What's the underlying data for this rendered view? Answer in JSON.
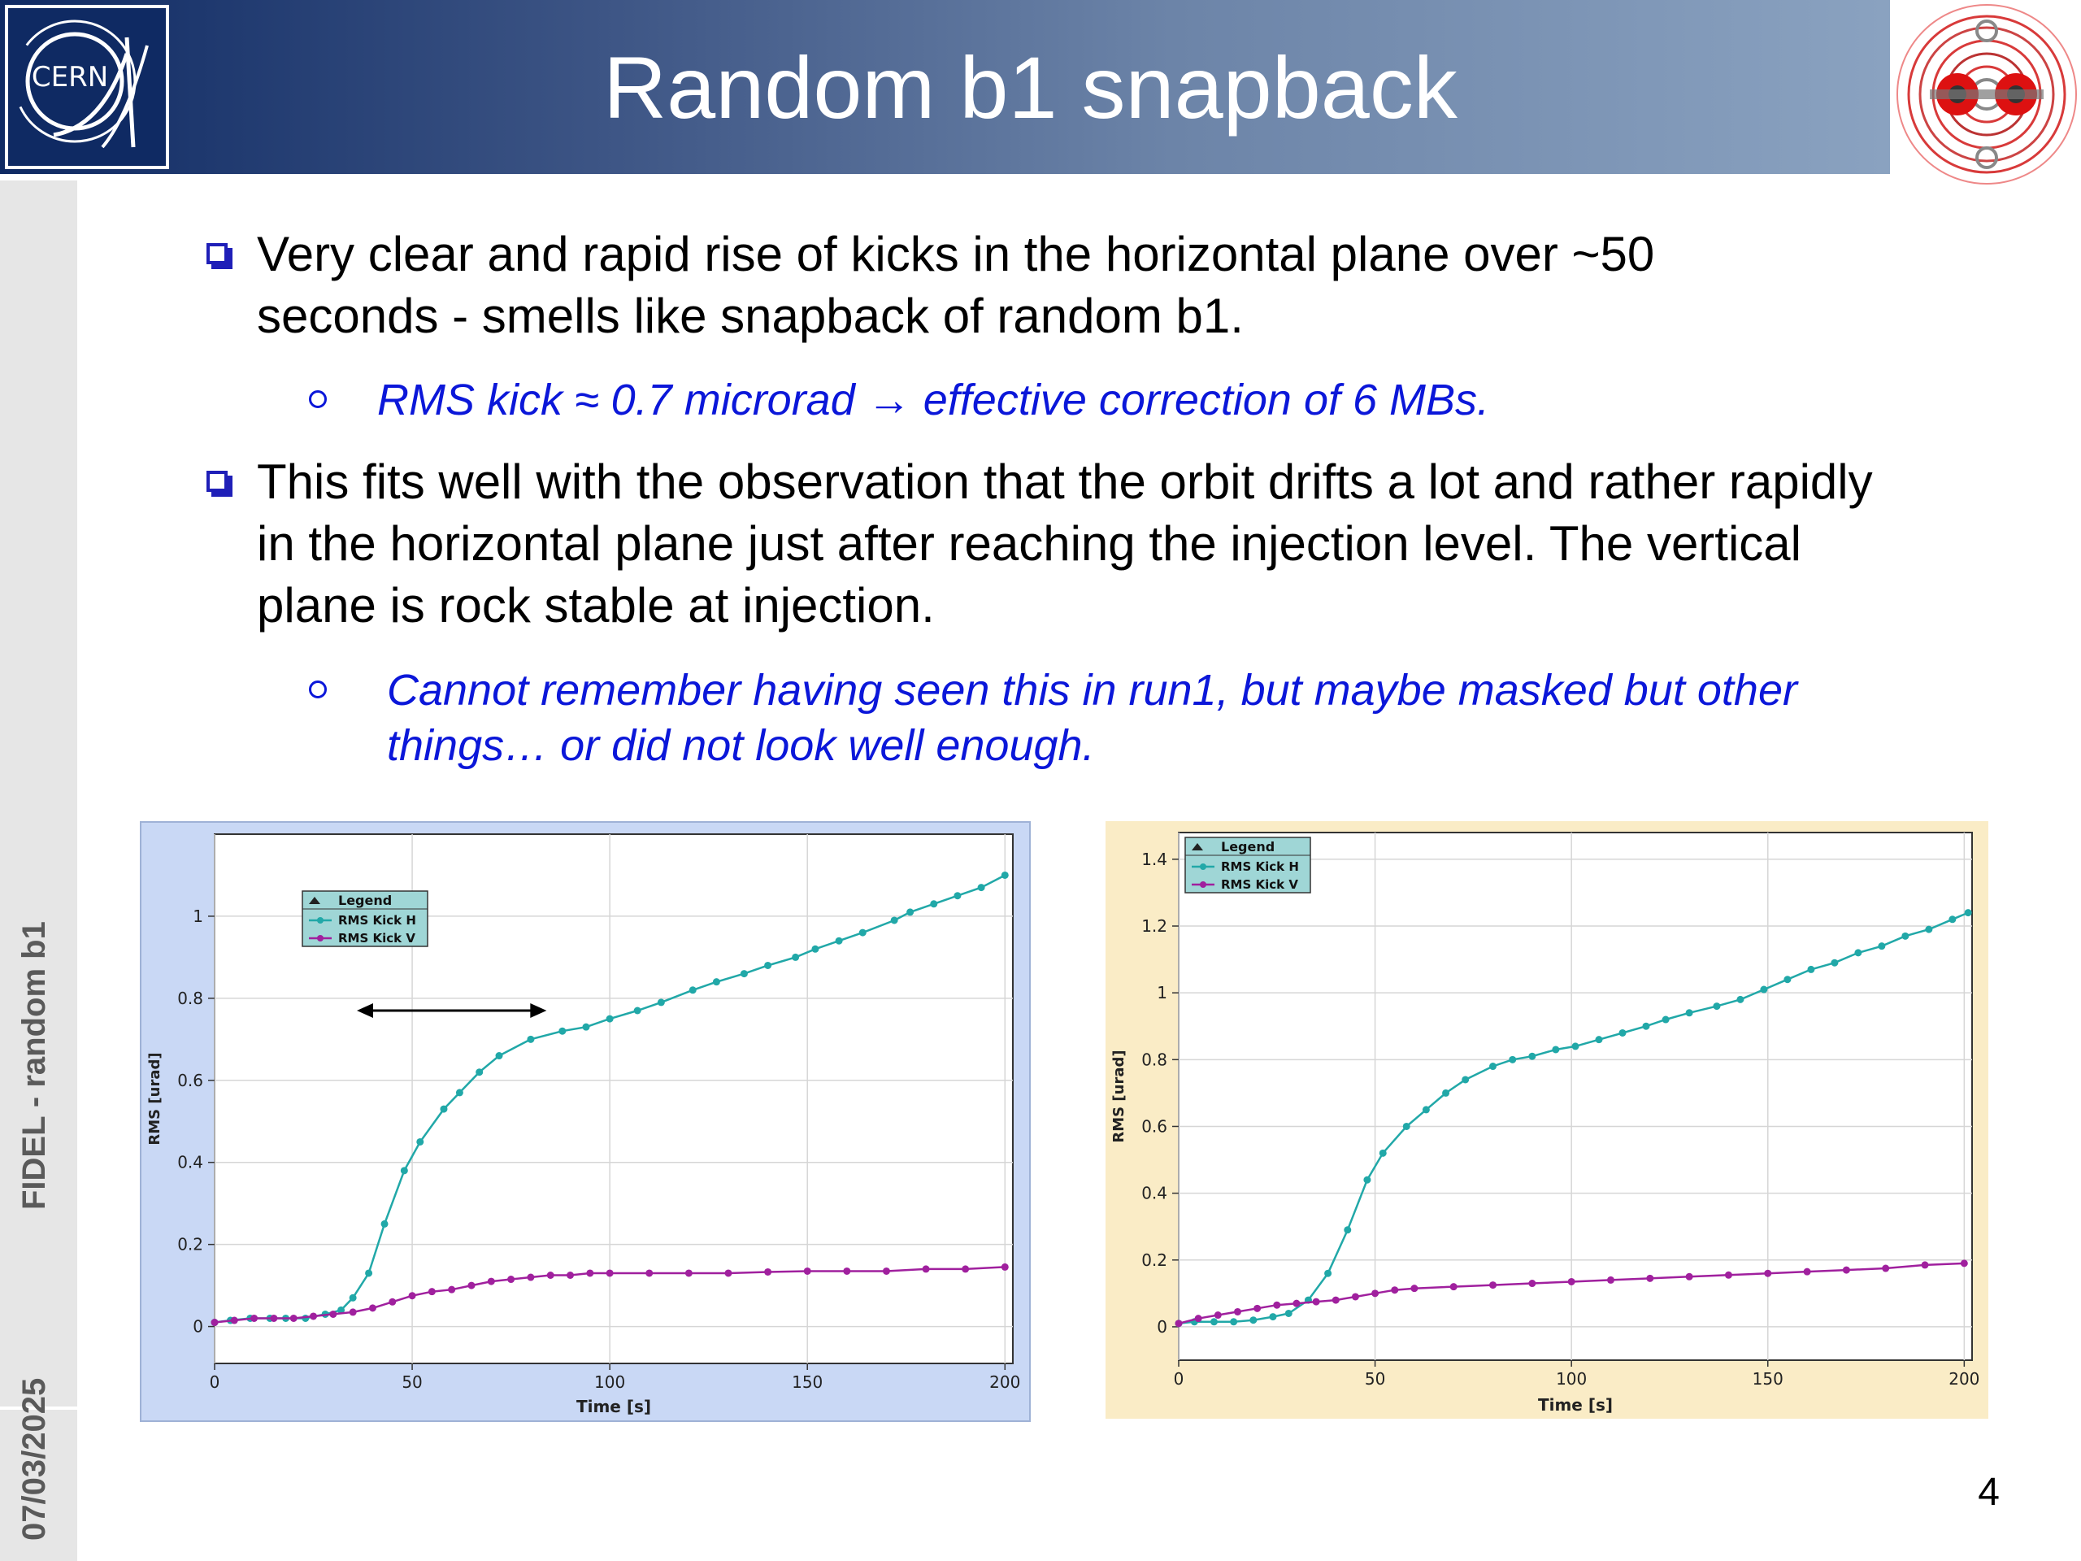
{
  "slide": {
    "title": "Random b1 snapback",
    "logo_text": "CERN",
    "sidebar_bottom": "07/03/2025",
    "sidebar_top": "FIDEL - random b1",
    "page_number": "4"
  },
  "bullets": [
    {
      "text": "Very clear and rapid rise of kicks in the horizontal plane over ~50 seconds  - smells like snapback of random b1.",
      "sub": "RMS kick ≈ 0.7 microrad → effective correction of 6 MBs."
    },
    {
      "text": "This fits well with the observation that the orbit drifts a lot and rather rapidly in the horizontal plane just after reaching the injection level. The vertical plane is rock stable at injection.",
      "sub": "Cannot remember having seen this in run1, but maybe masked but other things… or did not look well enough."
    }
  ],
  "colors": {
    "series_h": "#21a8a8",
    "series_v": "#a0209e",
    "left_bg": "#c9d8f5",
    "right_bg": "#faecc6",
    "bullet_marker": "#1f1fb8",
    "sub_text": "#0b17d9"
  },
  "chart_data": [
    {
      "type": "line",
      "xlabel": "Time [s]",
      "ylabel": "RMS [urad]",
      "xlim": [
        0,
        202
      ],
      "ylim": [
        -0.09,
        1.2
      ],
      "xticks": [
        0,
        50,
        100,
        150,
        200
      ],
      "yticks": [
        0,
        0.2,
        0.4,
        0.6,
        0.8,
        1
      ],
      "ytick_labels": [
        "0",
        "0.2",
        "0.4",
        "0.6",
        "0.8",
        "1"
      ],
      "legend": {
        "title": "Legend",
        "position": "top-left"
      },
      "annotation": {
        "type": "double-arrow",
        "x": [
          36,
          84
        ],
        "y": 0.77
      },
      "series": [
        {
          "name": "RMS Kick H",
          "x": [
            0,
            4,
            9,
            14,
            18,
            23,
            28,
            32,
            35,
            39,
            43,
            48,
            52,
            58,
            62,
            67,
            72,
            80,
            88,
            94,
            100,
            107,
            113,
            121,
            127,
            134,
            140,
            147,
            152,
            158,
            164,
            172,
            176,
            182,
            188,
            194,
            200
          ],
          "y": [
            0.01,
            0.015,
            0.02,
            0.02,
            0.02,
            0.02,
            0.03,
            0.04,
            0.07,
            0.13,
            0.25,
            0.38,
            0.45,
            0.53,
            0.57,
            0.62,
            0.66,
            0.7,
            0.72,
            0.73,
            0.75,
            0.77,
            0.79,
            0.82,
            0.84,
            0.86,
            0.88,
            0.9,
            0.92,
            0.94,
            0.96,
            0.99,
            1.01,
            1.03,
            1.05,
            1.07,
            1.1
          ]
        },
        {
          "name": "RMS Kick V",
          "x": [
            0,
            5,
            10,
            15,
            20,
            25,
            30,
            35,
            40,
            45,
            50,
            55,
            60,
            65,
            70,
            75,
            80,
            85,
            90,
            95,
            100,
            110,
            120,
            130,
            140,
            150,
            160,
            170,
            180,
            190,
            200
          ],
          "y": [
            0.01,
            0.015,
            0.02,
            0.02,
            0.02,
            0.025,
            0.03,
            0.035,
            0.045,
            0.06,
            0.075,
            0.085,
            0.09,
            0.1,
            0.11,
            0.115,
            0.12,
            0.125,
            0.125,
            0.13,
            0.13,
            0.13,
            0.13,
            0.13,
            0.133,
            0.135,
            0.135,
            0.135,
            0.14,
            0.14,
            0.145
          ]
        }
      ]
    },
    {
      "type": "line",
      "xlabel": "Time [s]",
      "ylabel": "RMS [urad]",
      "xlim": [
        0,
        202
      ],
      "ylim": [
        -0.1,
        1.48
      ],
      "xticks": [
        0,
        50,
        100,
        150,
        200
      ],
      "yticks": [
        0,
        0.2,
        0.4,
        0.6,
        0.8,
        1,
        1.2,
        1.4
      ],
      "ytick_labels": [
        "0",
        "0.2",
        "0.4",
        "0.6",
        "0.8",
        "1",
        "1.2",
        "1.4"
      ],
      "legend": {
        "title": "Legend",
        "position": "top-left"
      },
      "series": [
        {
          "name": "RMS Kick H",
          "x": [
            0,
            4,
            9,
            14,
            19,
            24,
            28,
            33,
            38,
            43,
            48,
            52,
            58,
            63,
            68,
            73,
            80,
            85,
            90,
            96,
            101,
            107,
            113,
            119,
            124,
            130,
            137,
            143,
            149,
            155,
            161,
            167,
            173,
            179,
            185,
            191,
            197,
            201
          ],
          "y": [
            0.01,
            0.015,
            0.015,
            0.015,
            0.02,
            0.03,
            0.04,
            0.08,
            0.16,
            0.29,
            0.44,
            0.52,
            0.6,
            0.65,
            0.7,
            0.74,
            0.78,
            0.8,
            0.81,
            0.83,
            0.84,
            0.86,
            0.88,
            0.9,
            0.92,
            0.94,
            0.96,
            0.98,
            1.01,
            1.04,
            1.07,
            1.09,
            1.12,
            1.14,
            1.17,
            1.19,
            1.22,
            1.24
          ]
        },
        {
          "name": "RMS Kick V",
          "x": [
            0,
            5,
            10,
            15,
            20,
            25,
            30,
            35,
            40,
            45,
            50,
            55,
            60,
            70,
            80,
            90,
            100,
            110,
            120,
            130,
            140,
            150,
            160,
            170,
            180,
            190,
            200
          ],
          "y": [
            0.01,
            0.025,
            0.035,
            0.045,
            0.055,
            0.065,
            0.07,
            0.075,
            0.08,
            0.09,
            0.1,
            0.11,
            0.115,
            0.12,
            0.125,
            0.13,
            0.135,
            0.14,
            0.145,
            0.15,
            0.155,
            0.16,
            0.165,
            0.17,
            0.175,
            0.185,
            0.19
          ]
        }
      ]
    }
  ]
}
